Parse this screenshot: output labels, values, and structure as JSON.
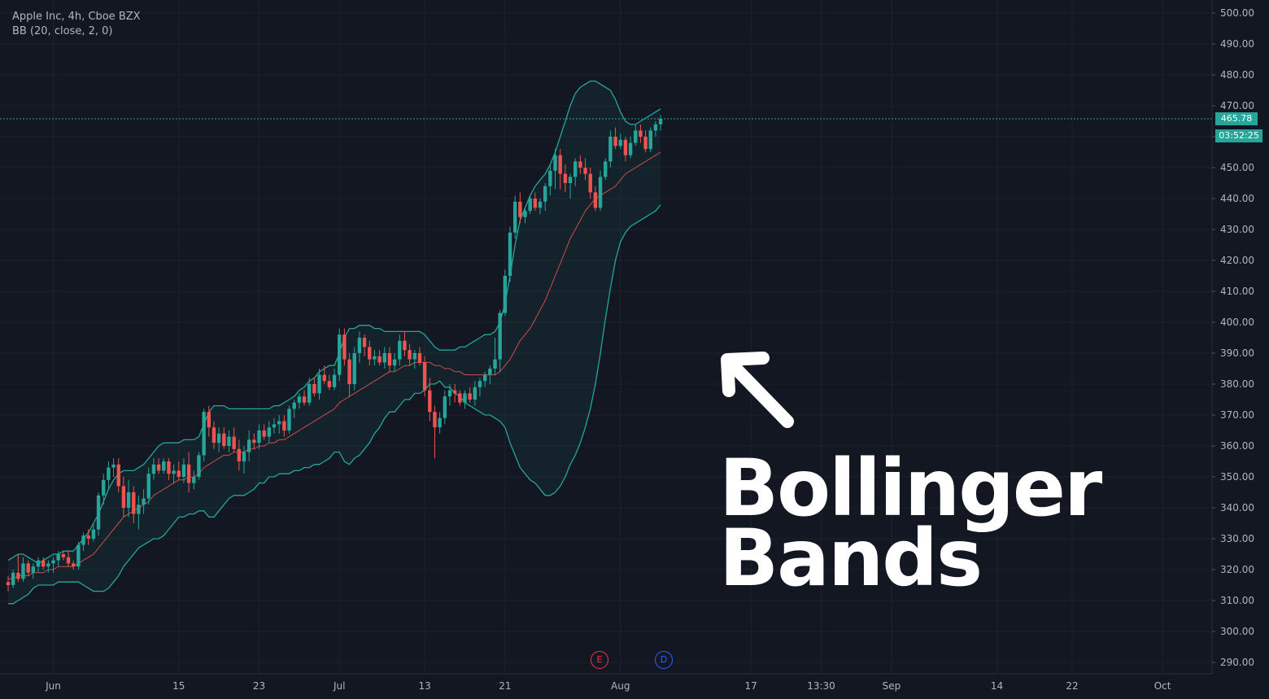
{
  "header": {
    "symbol_line": "Apple Inc, 4h, Cboe BZX",
    "indicator_line": "BB (20, close, 2, 0)"
  },
  "annotation": {
    "line1": "Bollinger",
    "line2": "Bands"
  },
  "last_price": {
    "value_label": "465.78",
    "countdown": "03:52:25",
    "value": 465.78
  },
  "events": [
    {
      "label": "E",
      "color": "#f23645"
    },
    {
      "label": "D",
      "color": "#2962ff"
    }
  ],
  "colors": {
    "background": "#131722",
    "up": "#26a69a",
    "down": "#ef5350",
    "band": "#26a69a",
    "basis": "#ef5350",
    "grid": "#1e2230"
  },
  "chart_data": {
    "type": "candlestick",
    "title": "Apple Inc, 4h, Cboe BZX",
    "indicator": "BB (20, close, 2, 0)",
    "ylim": [
      285,
      502
    ],
    "y_ticks": [
      500,
      490,
      480,
      470,
      460,
      450,
      440,
      430,
      420,
      410,
      400,
      390,
      380,
      370,
      360,
      350,
      340,
      330,
      320,
      310,
      300,
      290
    ],
    "y_tick_labels": [
      "500.00",
      "490.00",
      "480.00",
      "470.00",
      "460.00",
      "450.00",
      "440.00",
      "430.00",
      "420.00",
      "410.00",
      "400.00",
      "390.00",
      "380.00",
      "370.00",
      "360.00",
      "350.00",
      "340.00",
      "330.00",
      "320.00",
      "310.00",
      "300.00",
      "290.00"
    ],
    "x_ticks": [
      {
        "label": "Jun",
        "bar": 9
      },
      {
        "label": "15",
        "bar": 34
      },
      {
        "label": "23",
        "bar": 50
      },
      {
        "label": "Jul",
        "bar": 66
      },
      {
        "label": "13",
        "bar": 83
      },
      {
        "label": "21",
        "bar": 99
      },
      {
        "label": "Aug",
        "bar": 122
      },
      {
        "label": "17",
        "bar": 148
      },
      {
        "label": "13:30",
        "bar": 162
      },
      {
        "label": "Sep",
        "bar": 176
      },
      {
        "label": "14",
        "bar": 197
      },
      {
        "label": "22",
        "bar": 212
      },
      {
        "label": "Oct",
        "bar": 230
      }
    ],
    "candles": [
      [
        316,
        318,
        313,
        315
      ],
      [
        315,
        320,
        314,
        319
      ],
      [
        319,
        325,
        316,
        317
      ],
      [
        317,
        324,
        316,
        322
      ],
      [
        322,
        323,
        318,
        319
      ],
      [
        319,
        322,
        317,
        321
      ],
      [
        321,
        324,
        319,
        323
      ],
      [
        323,
        324,
        320,
        321
      ],
      [
        321,
        323,
        319,
        322
      ],
      [
        322,
        324,
        319,
        323
      ],
      [
        323,
        326,
        321,
        325
      ],
      [
        325,
        326,
        323,
        324
      ],
      [
        324,
        326,
        321,
        322
      ],
      [
        322,
        323,
        320,
        321
      ],
      [
        321,
        329,
        320,
        328
      ],
      [
        328,
        332,
        326,
        331
      ],
      [
        331,
        333,
        328,
        330
      ],
      [
        330,
        335,
        329,
        333
      ],
      [
        333,
        345,
        331,
        344
      ],
      [
        344,
        351,
        341,
        349
      ],
      [
        349,
        355,
        346,
        353
      ],
      [
        353,
        356,
        350,
        354
      ],
      [
        354,
        356,
        345,
        347
      ],
      [
        347,
        350,
        337,
        340
      ],
      [
        340,
        349,
        337,
        345
      ],
      [
        345,
        347,
        335,
        338
      ],
      [
        338,
        344,
        333,
        341
      ],
      [
        341,
        346,
        338,
        343
      ],
      [
        343,
        353,
        341,
        351
      ],
      [
        351,
        356,
        349,
        354
      ],
      [
        354,
        356,
        351,
        352
      ],
      [
        352,
        356,
        351,
        355
      ],
      [
        355,
        356,
        349,
        351
      ],
      [
        351,
        354,
        348,
        352
      ],
      [
        352,
        355,
        349,
        350
      ],
      [
        350,
        356,
        348,
        354
      ],
      [
        354,
        358,
        345,
        348
      ],
      [
        348,
        352,
        346,
        350
      ],
      [
        350,
        358,
        349,
        357
      ],
      [
        357,
        372,
        355,
        371
      ],
      [
        371,
        373,
        363,
        366
      ],
      [
        366,
        368,
        359,
        361
      ],
      [
        361,
        366,
        358,
        364
      ],
      [
        364,
        366,
        359,
        360
      ],
      [
        360,
        365,
        358,
        363
      ],
      [
        363,
        366,
        358,
        359
      ],
      [
        359,
        362,
        352,
        355
      ],
      [
        355,
        360,
        351,
        358
      ],
      [
        358,
        365,
        355,
        362
      ],
      [
        362,
        364,
        359,
        361
      ],
      [
        361,
        367,
        359,
        365
      ],
      [
        365,
        367,
        362,
        363
      ],
      [
        363,
        368,
        361,
        366
      ],
      [
        366,
        369,
        364,
        367
      ],
      [
        367,
        370,
        364,
        368
      ],
      [
        368,
        370,
        363,
        365
      ],
      [
        365,
        373,
        364,
        372
      ],
      [
        372,
        375,
        369,
        374
      ],
      [
        374,
        377,
        372,
        376
      ],
      [
        376,
        378,
        373,
        374
      ],
      [
        374,
        382,
        373,
        380
      ],
      [
        380,
        382,
        376,
        377
      ],
      [
        377,
        385,
        375,
        383
      ],
      [
        383,
        386,
        380,
        381
      ],
      [
        381,
        383,
        378,
        379
      ],
      [
        379,
        385,
        378,
        383
      ],
      [
        383,
        398,
        381,
        396
      ],
      [
        396,
        398,
        386,
        388
      ],
      [
        388,
        390,
        376,
        380
      ],
      [
        380,
        392,
        378,
        390
      ],
      [
        390,
        397,
        387,
        395
      ],
      [
        395,
        396,
        389,
        392
      ],
      [
        392,
        394,
        386,
        388
      ],
      [
        388,
        391,
        386,
        389
      ],
      [
        389,
        391,
        386,
        387
      ],
      [
        387,
        392,
        385,
        390
      ],
      [
        390,
        392,
        384,
        386
      ],
      [
        386,
        390,
        384,
        388
      ],
      [
        388,
        396,
        386,
        394
      ],
      [
        394,
        397,
        389,
        391
      ],
      [
        391,
        393,
        386,
        388
      ],
      [
        388,
        391,
        385,
        390
      ],
      [
        390,
        392,
        386,
        387
      ],
      [
        387,
        389,
        376,
        378
      ],
      [
        378,
        382,
        368,
        371
      ],
      [
        371,
        373,
        356,
        366
      ],
      [
        366,
        371,
        364,
        369
      ],
      [
        369,
        378,
        367,
        376
      ],
      [
        376,
        380,
        373,
        378
      ],
      [
        378,
        380,
        374,
        377
      ],
      [
        377,
        378,
        373,
        374
      ],
      [
        374,
        378,
        372,
        377
      ],
      [
        377,
        379,
        374,
        375
      ],
      [
        375,
        381,
        373,
        379
      ],
      [
        379,
        382,
        376,
        381
      ],
      [
        381,
        384,
        379,
        383
      ],
      [
        383,
        386,
        380,
        385
      ],
      [
        385,
        395,
        383,
        388
      ],
      [
        388,
        404,
        384,
        403
      ],
      [
        403,
        417,
        402,
        415
      ],
      [
        415,
        431,
        413,
        429
      ],
      [
        429,
        441,
        427,
        439
      ],
      [
        439,
        442,
        432,
        434
      ],
      [
        434,
        437,
        432,
        436
      ],
      [
        436,
        441,
        435,
        440
      ],
      [
        440,
        442,
        436,
        437
      ],
      [
        437,
        440,
        435,
        439
      ],
      [
        439,
        445,
        436,
        444
      ],
      [
        444,
        451,
        441,
        449
      ],
      [
        449,
        456,
        443,
        454
      ],
      [
        454,
        456,
        443,
        448
      ],
      [
        448,
        451,
        442,
        445
      ],
      [
        445,
        448,
        440,
        447
      ],
      [
        447,
        453,
        444,
        452
      ],
      [
        452,
        454,
        448,
        450
      ],
      [
        450,
        453,
        446,
        448
      ],
      [
        448,
        450,
        440,
        442
      ],
      [
        442,
        444,
        436,
        437
      ],
      [
        437,
        449,
        436,
        447
      ],
      [
        447,
        453,
        446,
        452
      ],
      [
        452,
        462,
        450,
        460
      ],
      [
        460,
        463,
        456,
        457
      ],
      [
        457,
        461,
        456,
        459
      ],
      [
        459,
        460,
        452,
        454
      ],
      [
        454,
        460,
        453,
        458
      ],
      [
        458,
        464,
        457,
        462
      ],
      [
        462,
        464,
        458,
        460
      ],
      [
        460,
        462,
        455,
        456
      ],
      [
        456,
        463,
        455,
        462
      ],
      [
        462,
        465,
        460,
        464
      ],
      [
        464,
        467,
        462,
        465.78
      ]
    ],
    "bb_upper": [
      323,
      324,
      325,
      325,
      324,
      323,
      322,
      323,
      324,
      325,
      325,
      326,
      326,
      326,
      328,
      330,
      332,
      335,
      338,
      342,
      346,
      349,
      351,
      352,
      352,
      352,
      353,
      354,
      356,
      358,
      360,
      361,
      361,
      361,
      361,
      362,
      362,
      362,
      363,
      367,
      371,
      373,
      373,
      373,
      372,
      372,
      372,
      372,
      372,
      372,
      372,
      372,
      372,
      373,
      373,
      374,
      375,
      376,
      378,
      379,
      381,
      382,
      384,
      385,
      386,
      386,
      390,
      395,
      398,
      398,
      399,
      399,
      399,
      398,
      398,
      397,
      397,
      397,
      397,
      397,
      397,
      397,
      397,
      396,
      394,
      392,
      391,
      391,
      391,
      391,
      392,
      392,
      393,
      394,
      395,
      396,
      396,
      397,
      400,
      406,
      415,
      425,
      433,
      437,
      441,
      444,
      446,
      448,
      451,
      455,
      460,
      465,
      470,
      474,
      476,
      477,
      478,
      478,
      477,
      476,
      475,
      472,
      468,
      465,
      464,
      464,
      465,
      466,
      467,
      468,
      469
    ],
    "bb_basis": [
      317,
      317,
      318,
      318,
      318,
      319,
      319,
      319,
      320,
      320,
      321,
      321,
      321,
      321,
      322,
      323,
      324,
      325,
      327,
      329,
      331,
      333,
      335,
      337,
      338,
      339,
      340,
      341,
      342,
      344,
      345,
      346,
      347,
      348,
      349,
      349,
      350,
      350,
      351,
      353,
      354,
      355,
      356,
      357,
      357,
      358,
      358,
      358,
      359,
      359,
      360,
      360,
      361,
      361,
      362,
      362,
      363,
      364,
      365,
      366,
      367,
      368,
      369,
      370,
      371,
      372,
      374,
      375,
      376,
      377,
      378,
      379,
      380,
      381,
      382,
      383,
      384,
      384,
      385,
      386,
      386,
      387,
      387,
      387,
      387,
      386,
      386,
      385,
      385,
      384,
      384,
      383,
      383,
      383,
      383,
      383,
      383,
      383,
      384,
      386,
      388,
      391,
      394,
      396,
      398,
      401,
      404,
      407,
      411,
      415,
      419,
      423,
      427,
      430,
      433,
      436,
      438,
      440,
      441,
      442,
      443,
      444,
      446,
      448,
      449,
      450,
      451,
      452,
      453,
      454,
      455
    ],
    "bb_lower": [
      309,
      309,
      310,
      311,
      312,
      314,
      315,
      315,
      315,
      315,
      316,
      316,
      316,
      316,
      316,
      315,
      314,
      313,
      313,
      313,
      314,
      316,
      318,
      321,
      323,
      325,
      327,
      328,
      329,
      330,
      330,
      331,
      333,
      335,
      337,
      337,
      338,
      338,
      339,
      339,
      337,
      337,
      339,
      341,
      343,
      344,
      344,
      344,
      345,
      346,
      348,
      348,
      350,
      350,
      351,
      351,
      351,
      352,
      352,
      353,
      353,
      354,
      354,
      355,
      356,
      358,
      358,
      355,
      354,
      356,
      357,
      359,
      361,
      364,
      366,
      369,
      371,
      371,
      373,
      375,
      375,
      377,
      377,
      378,
      380,
      380,
      381,
      379,
      379,
      377,
      376,
      374,
      373,
      372,
      371,
      370,
      370,
      369,
      368,
      366,
      361,
      357,
      353,
      351,
      349,
      348,
      346,
      344,
      344,
      345,
      347,
      350,
      354,
      357,
      361,
      366,
      372,
      380,
      390,
      401,
      411,
      420,
      426,
      429,
      431,
      432,
      433,
      434,
      435,
      436,
      438
    ]
  }
}
